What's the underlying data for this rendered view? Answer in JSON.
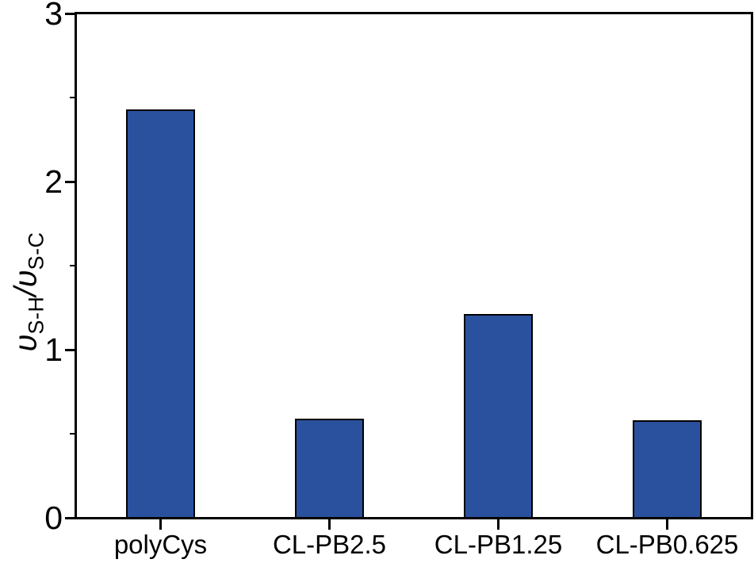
{
  "chart_data": {
    "type": "bar",
    "title": "",
    "categories": [
      "polyCys",
      "CL-PB2.5",
      "CL-PB1.25",
      "CL-PB0.625"
    ],
    "values": [
      2.43,
      0.59,
      1.21,
      0.58
    ],
    "xlabel": "",
    "ylabel": "υS-H/υS-C",
    "ylabel_parts": {
      "symbol1": "υ",
      "subscript1": "S-H",
      "slash": "/",
      "symbol2": "υ",
      "subscript2": "S-C"
    },
    "ylim": [
      0,
      3
    ],
    "y_major_ticks": [
      0,
      1,
      2,
      3
    ],
    "y_minor_ticks": [
      0.5,
      1.5,
      2.5
    ],
    "grid": false,
    "legend": false,
    "bar_fill_color": "#2a519e",
    "bar_border_color": "#000000",
    "axis_color": "#000000",
    "background_color": "#ffffff"
  }
}
